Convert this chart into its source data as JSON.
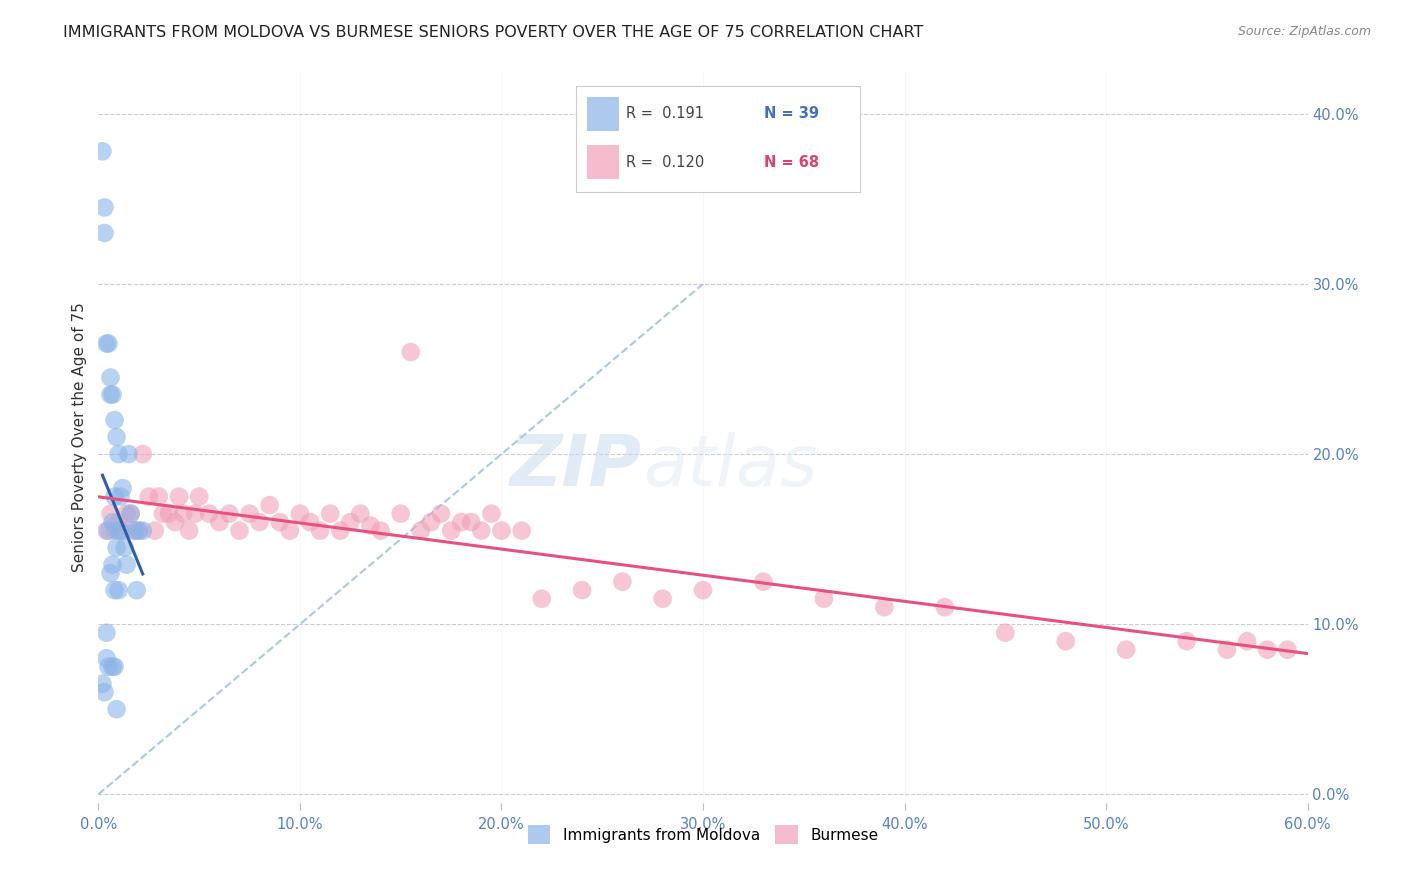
{
  "title": "IMMIGRANTS FROM MOLDOVA VS BURMESE SENIORS POVERTY OVER THE AGE OF 75 CORRELATION CHART",
  "source": "Source: ZipAtlas.com",
  "ylabel": "Seniors Poverty Over the Age of 75",
  "xlabel_ticks": [
    "0.0%",
    "",
    "",
    "",
    "",
    "",
    "10.0%",
    "",
    "",
    "",
    "",
    "",
    "20.0%",
    "",
    "",
    "",
    "",
    "",
    "30.0%",
    "",
    "",
    "",
    "",
    "",
    "40.0%",
    "",
    "",
    "",
    "",
    "",
    "50.0%",
    "",
    "",
    "",
    "",
    "",
    "60.0%"
  ],
  "xlabel_vals": [
    0,
    0.6
  ],
  "ylabel_ticks": [
    "0.0%",
    "10.0%",
    "20.0%",
    "30.0%",
    "40.0%"
  ],
  "ylabel_vals": [
    0,
    0.1,
    0.2,
    0.3,
    0.4
  ],
  "xmin": 0,
  "xmax": 0.6,
  "ymin": -0.005,
  "ymax": 0.425,
  "legend1_R": "0.191",
  "legend1_N": "39",
  "legend2_R": "0.120",
  "legend2_N": "68",
  "blue_color": "#8ab4e8",
  "pink_color": "#f0a0b8",
  "blue_line_color": "#2c5faa",
  "pink_line_color": "#e85080",
  "dashed_line_color": "#aac8e8",
  "watermark_zip": "ZIP",
  "watermark_atlas": "atlas",
  "moldova_x": [
    0.002,
    0.003,
    0.003,
    0.004,
    0.004,
    0.005,
    0.005,
    0.005,
    0.006,
    0.006,
    0.006,
    0.007,
    0.007,
    0.007,
    0.008,
    0.008,
    0.008,
    0.009,
    0.009,
    0.01,
    0.01,
    0.01,
    0.011,
    0.011,
    0.012,
    0.013,
    0.014,
    0.015,
    0.016,
    0.018,
    0.019,
    0.02,
    0.022,
    0.002,
    0.003,
    0.004,
    0.007,
    0.008,
    0.009
  ],
  "moldova_y": [
    0.378,
    0.345,
    0.33,
    0.265,
    0.095,
    0.265,
    0.155,
    0.075,
    0.245,
    0.235,
    0.13,
    0.235,
    0.16,
    0.135,
    0.22,
    0.175,
    0.12,
    0.21,
    0.145,
    0.2,
    0.155,
    0.12,
    0.175,
    0.155,
    0.18,
    0.145,
    0.135,
    0.2,
    0.165,
    0.155,
    0.12,
    0.155,
    0.155,
    0.065,
    0.06,
    0.08,
    0.075,
    0.075,
    0.05
  ],
  "burmese_x": [
    0.004,
    0.006,
    0.008,
    0.01,
    0.012,
    0.014,
    0.016,
    0.018,
    0.02,
    0.022,
    0.025,
    0.028,
    0.03,
    0.032,
    0.035,
    0.038,
    0.04,
    0.042,
    0.045,
    0.048,
    0.05,
    0.055,
    0.06,
    0.065,
    0.07,
    0.075,
    0.08,
    0.085,
    0.09,
    0.095,
    0.1,
    0.105,
    0.11,
    0.115,
    0.12,
    0.125,
    0.13,
    0.135,
    0.14,
    0.15,
    0.155,
    0.16,
    0.165,
    0.17,
    0.175,
    0.18,
    0.185,
    0.19,
    0.195,
    0.2,
    0.21,
    0.22,
    0.24,
    0.26,
    0.28,
    0.3,
    0.33,
    0.36,
    0.39,
    0.42,
    0.45,
    0.48,
    0.51,
    0.54,
    0.56,
    0.57,
    0.58,
    0.59
  ],
  "burmese_y": [
    0.155,
    0.165,
    0.155,
    0.16,
    0.155,
    0.165,
    0.165,
    0.155,
    0.155,
    0.2,
    0.175,
    0.155,
    0.175,
    0.165,
    0.165,
    0.16,
    0.175,
    0.165,
    0.155,
    0.165,
    0.175,
    0.165,
    0.16,
    0.165,
    0.155,
    0.165,
    0.16,
    0.17,
    0.16,
    0.155,
    0.165,
    0.16,
    0.155,
    0.165,
    0.155,
    0.16,
    0.165,
    0.158,
    0.155,
    0.165,
    0.26,
    0.155,
    0.16,
    0.165,
    0.155,
    0.16,
    0.16,
    0.155,
    0.165,
    0.155,
    0.155,
    0.115,
    0.12,
    0.125,
    0.115,
    0.12,
    0.125,
    0.115,
    0.11,
    0.11,
    0.095,
    0.09,
    0.085,
    0.09,
    0.085,
    0.09,
    0.085,
    0.085
  ]
}
